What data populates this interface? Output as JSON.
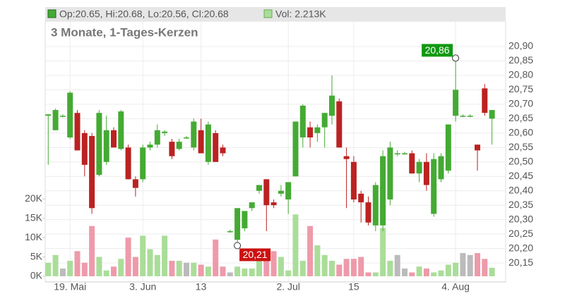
{
  "chart_data": {
    "type": "candlestick",
    "title": "3 Monate, 1-Tages-Kerzen",
    "ohlc_legend": "Op:20.65, Hi:20.68, Lo:20.56, Cl:20.68",
    "volume_legend": "Vol: 2.213K",
    "categories": [
      null,
      null,
      null,
      "19. Mai",
      null,
      null,
      null,
      null,
      null,
      null,
      null,
      null,
      null,
      "3. Jun",
      null,
      null,
      null,
      null,
      null,
      null,
      null,
      "13",
      null,
      null,
      null,
      null,
      null,
      null,
      null,
      null,
      null,
      null,
      null,
      "2. Jul",
      null,
      null,
      null,
      null,
      null,
      null,
      null,
      null,
      "15",
      null,
      null,
      null,
      null,
      null,
      null,
      null,
      null,
      null,
      null,
      null,
      null,
      null,
      "4. Aug",
      null,
      null,
      null,
      null,
      null
    ],
    "open": [
      20.66,
      20.61,
      20.66,
      20.585,
      20.67,
      20.6,
      20.59,
      20.455,
      20.5,
      20.61,
      20.545,
      20.55,
      20.44,
      20.44,
      20.55,
      20.56,
      20.6,
      20.57,
      20.545,
      20.585,
      20.55,
      20.61,
      20.5,
      20.6,
      20.55,
      20.26,
      20.23,
      20.27,
      20.34,
      20.4,
      20.44,
      20.36,
      20.39,
      20.37,
      20.45,
      20.585,
      20.62,
      20.6,
      20.62,
      20.66,
      20.71,
      20.52,
      20.5,
      20.39,
      20.36,
      20.28,
      20.28,
      20.37,
      20.53,
      20.53,
      20.53,
      20.46,
      20.5,
      20.32,
      20.44,
      20.47,
      20.66,
      20.66,
      20.66,
      20.56,
      20.755,
      20.65
    ],
    "high": [
      20.665,
      20.685,
      20.665,
      20.745,
      20.68,
      20.61,
      20.6,
      20.68,
      20.66,
      20.62,
      20.68,
      20.56,
      20.45,
      20.56,
      20.57,
      20.63,
      20.61,
      20.58,
      20.58,
      20.59,
      20.65,
      20.65,
      20.64,
      20.61,
      20.56,
      20.265,
      20.34,
      20.33,
      20.36,
      20.42,
      20.44,
      20.37,
      20.42,
      20.43,
      20.64,
      20.7,
      20.64,
      20.63,
      20.67,
      20.8,
      20.72,
      20.55,
      20.52,
      20.4,
      20.38,
      20.43,
      20.54,
      20.57,
      20.54,
      20.535,
      20.54,
      20.51,
      20.53,
      20.53,
      20.53,
      20.63,
      20.86,
      20.665,
      20.665,
      20.56,
      20.77,
      20.68
    ],
    "low": [
      20.49,
      20.61,
      20.655,
      20.58,
      20.54,
      20.45,
      20.32,
      20.45,
      20.49,
      20.55,
      20.54,
      20.44,
      20.38,
      20.43,
      20.54,
      20.55,
      20.59,
      20.51,
      20.54,
      20.58,
      20.54,
      20.53,
      20.49,
      20.5,
      20.52,
      20.255,
      20.21,
      20.26,
      20.33,
      20.39,
      20.26,
      20.34,
      20.38,
      20.32,
      20.45,
      20.55,
      20.55,
      20.57,
      20.55,
      20.63,
      20.55,
      20.34,
      20.36,
      20.29,
      20.28,
      20.26,
      20.26,
      20.35,
      20.52,
      20.525,
      20.46,
      20.43,
      20.4,
      20.31,
      20.43,
      20.46,
      20.64,
      20.655,
      20.655,
      20.47,
      20.66,
      20.56
    ],
    "close": [
      20.665,
      20.68,
      20.66,
      20.74,
      20.54,
      20.49,
      20.34,
      20.67,
      20.61,
      20.55,
      20.675,
      20.44,
      20.41,
      20.55,
      20.56,
      20.61,
      20.605,
      20.52,
      20.57,
      20.585,
      20.64,
      20.53,
      20.63,
      20.5,
      20.53,
      20.26,
      20.34,
      20.33,
      20.36,
      20.42,
      20.35,
      20.35,
      20.4,
      20.43,
      20.64,
      20.695,
      20.585,
      20.62,
      20.67,
      20.73,
      20.55,
      20.51,
      20.37,
      20.36,
      20.29,
      20.42,
      20.52,
      20.55,
      20.53,
      20.53,
      20.46,
      20.5,
      20.42,
      20.51,
      20.52,
      20.63,
      20.75,
      20.66,
      20.66,
      20.54,
      20.67,
      20.68
    ],
    "volume": [
      3.5,
      5.5,
      2,
      4,
      6.5,
      3.5,
      13,
      5,
      1.5,
      2.5,
      4.5,
      10,
      5,
      10.5,
      7,
      5.5,
      10.5,
      4,
      4,
      3.5,
      3.5,
      3,
      2.5,
      9.5,
      2.5,
      1,
      2.5,
      2,
      2,
      6.5,
      6.5,
      6.5,
      5,
      1.5,
      16,
      4,
      13,
      8,
      5.5,
      4,
      3,
      4.5,
      4.5,
      5,
      1,
      1,
      12.5,
      4,
      5.5,
      2,
      1,
      2.5,
      2,
      1,
      1.5,
      3,
      3.5,
      6,
      5.5,
      6,
      4.5,
      2.213
    ],
    "up_color": "#44aa33",
    "down_color": "#bb2222",
    "volume_up_color": "#aadd99",
    "volume_down_color": "#ee9aaa",
    "volume_flat_color": "#bbbbbb",
    "ylim": [
      20.094,
      20.988
    ],
    "yticks": [
      {
        "value": 20.15,
        "label": "20,15"
      },
      {
        "value": 20.2,
        "label": "20,20"
      },
      {
        "value": 20.25,
        "label": "20,25"
      },
      {
        "value": 20.3,
        "label": "20,30"
      },
      {
        "value": 20.35,
        "label": "20,35"
      },
      {
        "value": 20.4,
        "label": "20,40"
      },
      {
        "value": 20.45,
        "label": "20,45"
      },
      {
        "value": 20.5,
        "label": "20,50"
      },
      {
        "value": 20.55,
        "label": "20,55"
      },
      {
        "value": 20.6,
        "label": "20,60"
      },
      {
        "value": 20.65,
        "label": "20,65"
      },
      {
        "value": 20.7,
        "label": "20,70"
      },
      {
        "value": 20.75,
        "label": "20,75"
      },
      {
        "value": 20.8,
        "label": "20,80"
      },
      {
        "value": 20.85,
        "label": "20,85"
      },
      {
        "value": 20.9,
        "label": "20,90"
      }
    ],
    "y2lim": [
      0,
      66
    ],
    "y2ticks": [
      {
        "value": 0,
        "label": "0K"
      },
      {
        "value": 5,
        "label": "5K"
      },
      {
        "value": 10,
        "label": "10K"
      },
      {
        "value": 15,
        "label": "15K"
      },
      {
        "value": 20,
        "label": "20K"
      }
    ],
    "annotations": [
      {
        "label": "20,86",
        "value": 20.86,
        "index": 56,
        "color": "#119911"
      },
      {
        "label": "20,21",
        "value": 20.21,
        "index": 26,
        "color": "#cc1111"
      }
    ]
  }
}
